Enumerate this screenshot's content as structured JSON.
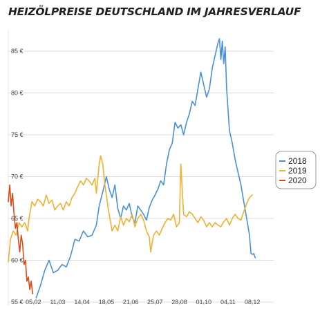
{
  "title": "HEIZÖLPREISE DEUTSCHLAND IM JAHRESVERLAUF",
  "chart_data": {
    "type": "line",
    "title": "HEIZÖLPREISE DEUTSCHLAND IM JAHRESVERLAUF",
    "xlabel": "",
    "ylabel": "",
    "x_tick_labels": [
      "05.02",
      "11.03",
      "14.04",
      "18.05",
      "21.06",
      "25.07",
      "28.08",
      "01.10",
      "04.11",
      "08.12"
    ],
    "y_tick_labels": [
      "55 €",
      "60 €",
      "65 €",
      "70 €",
      "75 €",
      "80 €",
      "85 €"
    ],
    "y_ticks": [
      55,
      60,
      65,
      70,
      75,
      80,
      85
    ],
    "ylim": [
      55,
      87
    ],
    "x_unit": "day of year (approx.)",
    "xlim": [
      1,
      366
    ],
    "x_ticks": [
      36,
      70,
      104,
      138,
      172,
      206,
      240,
      274,
      308,
      342
    ],
    "grid": "horizontal",
    "legend_position": "right",
    "series": [
      {
        "name": "2018",
        "color": "#4a90d9",
        "points": [
          [
            40,
            55.5
          ],
          [
            46,
            57
          ],
          [
            52,
            58.8
          ],
          [
            58,
            60
          ],
          [
            64,
            58.5
          ],
          [
            70,
            58.8
          ],
          [
            76,
            59.5
          ],
          [
            82,
            59.2
          ],
          [
            88,
            60.5
          ],
          [
            94,
            62.5
          ],
          [
            100,
            62.3
          ],
          [
            106,
            63.5
          ],
          [
            112,
            62.8
          ],
          [
            118,
            63
          ],
          [
            124,
            64.2
          ],
          [
            128,
            66.5
          ],
          [
            134,
            68.5
          ],
          [
            138,
            70
          ],
          [
            142,
            68.5
          ],
          [
            146,
            67.5
          ],
          [
            150,
            69
          ],
          [
            154,
            66.2
          ],
          [
            158,
            65
          ],
          [
            162,
            66.5
          ],
          [
            166,
            66
          ],
          [
            170,
            66.8
          ],
          [
            174,
            65.2
          ],
          [
            178,
            64.5
          ],
          [
            182,
            66.5
          ],
          [
            186,
            66
          ],
          [
            190,
            65.5
          ],
          [
            194,
            64.8
          ],
          [
            198,
            66.3
          ],
          [
            202,
            67.2
          ],
          [
            206,
            67.8
          ],
          [
            210,
            68.5
          ],
          [
            214,
            69.5
          ],
          [
            218,
            69
          ],
          [
            222,
            71.5
          ],
          [
            226,
            73.2
          ],
          [
            230,
            74
          ],
          [
            234,
            76.5
          ],
          [
            238,
            75.8
          ],
          [
            242,
            76.2
          ],
          [
            246,
            75
          ],
          [
            250,
            76.5
          ],
          [
            254,
            77.5
          ],
          [
            258,
            79
          ],
          [
            262,
            78.5
          ],
          [
            266,
            80.5
          ],
          [
            270,
            82.5
          ],
          [
            274,
            81
          ],
          [
            278,
            79.5
          ],
          [
            282,
            80.5
          ],
          [
            286,
            83
          ],
          [
            290,
            84.5
          ],
          [
            294,
            86
          ],
          [
            296,
            86.5
          ],
          [
            298,
            84
          ],
          [
            300,
            86.2
          ],
          [
            302,
            83.5
          ],
          [
            304,
            85.5
          ],
          [
            306,
            80.5
          ],
          [
            310,
            75.5
          ],
          [
            314,
            74
          ],
          [
            318,
            72
          ],
          [
            322,
            70.5
          ],
          [
            326,
            69
          ],
          [
            330,
            67
          ],
          [
            334,
            65
          ],
          [
            338,
            63
          ],
          [
            340,
            60.8
          ],
          [
            342,
            60.7
          ],
          [
            344,
            60.8
          ],
          [
            346,
            60.3
          ]
        ]
      },
      {
        "name": "2019",
        "color": "#f0b030",
        "points": [
          [
            1,
            59.8
          ],
          [
            4,
            62.5
          ],
          [
            8,
            63.5
          ],
          [
            12,
            63
          ],
          [
            16,
            64.5
          ],
          [
            20,
            64
          ],
          [
            24,
            64.5
          ],
          [
            28,
            63.5
          ],
          [
            30,
            65
          ],
          [
            34,
            67
          ],
          [
            38,
            66.5
          ],
          [
            42,
            67.3
          ],
          [
            46,
            67
          ],
          [
            50,
            66.5
          ],
          [
            54,
            67.8
          ],
          [
            58,
            66.8
          ],
          [
            62,
            67.2
          ],
          [
            66,
            66
          ],
          [
            70,
            66.5
          ],
          [
            74,
            66.8
          ],
          [
            78,
            66
          ],
          [
            82,
            67
          ],
          [
            86,
            66.5
          ],
          [
            90,
            67.5
          ],
          [
            94,
            68
          ],
          [
            98,
            68.8
          ],
          [
            102,
            69.5
          ],
          [
            106,
            69
          ],
          [
            110,
            69.8
          ],
          [
            114,
            69.5
          ],
          [
            118,
            69
          ],
          [
            122,
            69.8
          ],
          [
            124,
            68
          ],
          [
            128,
            71.5
          ],
          [
            130,
            72.5
          ],
          [
            133,
            71.5
          ],
          [
            136,
            69
          ],
          [
            140,
            66.5
          ],
          [
            144,
            64.5
          ],
          [
            146,
            63.5
          ],
          [
            150,
            64.2
          ],
          [
            154,
            63.5
          ],
          [
            158,
            65.2
          ],
          [
            162,
            64.2
          ],
          [
            166,
            65
          ],
          [
            170,
            64.6
          ],
          [
            174,
            65.5
          ],
          [
            178,
            64
          ],
          [
            182,
            65
          ],
          [
            186,
            65.5
          ],
          [
            190,
            64.8
          ],
          [
            194,
            63.5
          ],
          [
            198,
            62.8
          ],
          [
            200,
            61
          ],
          [
            204,
            63
          ],
          [
            208,
            63.5
          ],
          [
            212,
            63
          ],
          [
            216,
            63.8
          ],
          [
            220,
            64.5
          ],
          [
            224,
            65
          ],
          [
            228,
            64.8
          ],
          [
            232,
            65.5
          ],
          [
            236,
            64
          ],
          [
            240,
            64.5
          ],
          [
            242,
            71.5
          ],
          [
            246,
            65.5
          ],
          [
            250,
            65.2
          ],
          [
            254,
            65.8
          ],
          [
            258,
            65.5
          ],
          [
            262,
            65
          ],
          [
            266,
            64.5
          ],
          [
            270,
            65.2
          ],
          [
            274,
            64.8
          ],
          [
            278,
            64
          ],
          [
            282,
            64.5
          ],
          [
            286,
            64
          ],
          [
            290,
            64.5
          ],
          [
            294,
            64.2
          ],
          [
            298,
            64
          ],
          [
            302,
            64.6
          ],
          [
            306,
            65
          ],
          [
            310,
            64.2
          ],
          [
            314,
            65
          ],
          [
            318,
            65.5
          ],
          [
            322,
            65
          ],
          [
            326,
            64.8
          ],
          [
            330,
            65.8
          ],
          [
            334,
            66.8
          ],
          [
            338,
            67.5
          ],
          [
            342,
            67.8
          ]
        ]
      },
      {
        "name": "2020",
        "color": "#d94a1a",
        "points": [
          [
            1,
            67
          ],
          [
            3,
            69
          ],
          [
            5,
            66.5
          ],
          [
            7,
            68
          ],
          [
            9,
            65.5
          ],
          [
            11,
            63.8
          ],
          [
            13,
            64.5
          ],
          [
            15,
            62.5
          ],
          [
            17,
            61
          ],
          [
            19,
            63
          ],
          [
            21,
            62
          ],
          [
            23,
            59.5
          ],
          [
            25,
            60
          ],
          [
            27,
            57.5
          ],
          [
            29,
            58
          ],
          [
            31,
            56.5
          ],
          [
            33,
            57.5
          ],
          [
            35,
            56
          ]
        ]
      }
    ]
  }
}
